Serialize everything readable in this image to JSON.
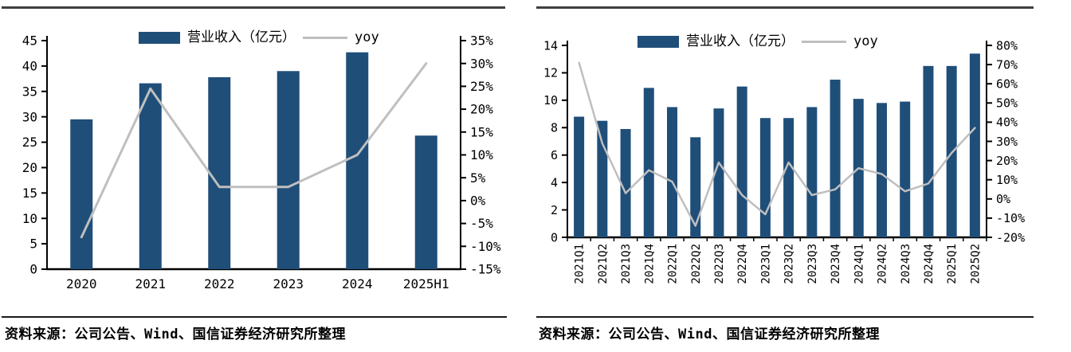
{
  "colors": {
    "bar": "#1F4E79",
    "line": "#BFBFBF",
    "axis": "#000000",
    "top_border": "#3F3F3F",
    "divider": "#1A1A1A"
  },
  "page": {
    "source_left": "资料来源：公司公告、Wind、国信证券经济研究所整理",
    "source_right": "资料来源：公司公告、Wind、国信证券经济研究所整理"
  },
  "chart_data": [
    {
      "type": "bar+line combo",
      "title": "",
      "legend_position": "top-center",
      "grid": false,
      "categories": [
        "2020",
        "2021",
        "2022",
        "2023",
        "2024",
        "2025H1"
      ],
      "series": [
        {
          "name": "营业收入（亿元）",
          "type": "bar",
          "axis": "left",
          "values": [
            29.5,
            36.6,
            37.8,
            39.0,
            42.7,
            26.3
          ]
        },
        {
          "name": "yoy",
          "type": "line",
          "axis": "right",
          "values": [
            -8,
            24.5,
            3,
            3,
            10,
            30
          ]
        }
      ],
      "y_left": {
        "min": 0,
        "max": 45,
        "step": 5,
        "tick_labels": [
          "0",
          "5",
          "10",
          "15",
          "20",
          "25",
          "30",
          "35",
          "40",
          "45"
        ]
      },
      "y_right": {
        "min": -15,
        "max": 35,
        "step": 5,
        "tick_labels": [
          "-15%",
          "-10%",
          "-5%",
          "0%",
          "5%",
          "10%",
          "15%",
          "20%",
          "25%",
          "30%",
          "35%"
        ]
      },
      "x_label_rotation": 0
    },
    {
      "type": "bar+line combo",
      "title": "",
      "legend_position": "top-center",
      "grid": false,
      "categories": [
        "2021Q1",
        "2021Q2",
        "2021Q3",
        "2021Q4",
        "2022Q1",
        "2022Q2",
        "2022Q3",
        "2022Q4",
        "2023Q1",
        "2023Q2",
        "2023Q3",
        "2023Q4",
        "2024Q1",
        "2024Q2",
        "2024Q3",
        "2024Q4",
        "2025Q1",
        "2025Q2"
      ],
      "series": [
        {
          "name": "营业收入（亿元）",
          "type": "bar",
          "axis": "left",
          "values": [
            8.8,
            8.5,
            7.9,
            10.9,
            9.5,
            7.3,
            9.4,
            11.0,
            8.7,
            8.7,
            9.5,
            11.5,
            10.1,
            9.8,
            9.9,
            12.5,
            12.5,
            13.4
          ]
        },
        {
          "name": "yoy",
          "type": "line",
          "axis": "right",
          "values": [
            71,
            29,
            3,
            15,
            9,
            -14,
            19,
            2,
            -8,
            19,
            2,
            5,
            16,
            13,
            4,
            8,
            24,
            37
          ]
        }
      ],
      "y_left": {
        "min": 0,
        "max": 14,
        "step": 2,
        "tick_labels": [
          "0",
          "2",
          "4",
          "6",
          "8",
          "10",
          "12",
          "14"
        ]
      },
      "y_right": {
        "min": -20,
        "max": 80,
        "step": 10,
        "tick_labels": [
          "-20%",
          "-10%",
          "0%",
          "10%",
          "20%",
          "30%",
          "40%",
          "50%",
          "60%",
          "70%",
          "80%"
        ]
      },
      "x_label_rotation": 90
    }
  ]
}
